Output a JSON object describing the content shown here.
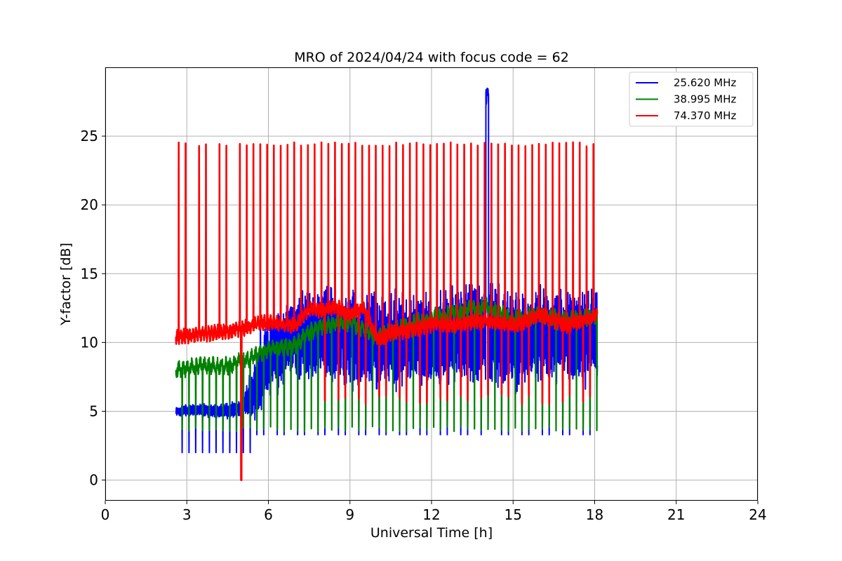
{
  "chart_data": {
    "type": "line",
    "title": "MRO of 2024/04/24 with focus code = 62",
    "xlabel": "Universal Time [h]",
    "ylabel": "Y-factor [dB]",
    "xlim": [
      0,
      24
    ],
    "ylim": [
      -1.5,
      30
    ],
    "xticks": [
      0,
      3,
      6,
      9,
      12,
      15,
      18,
      21,
      24
    ],
    "yticks": [
      0,
      5,
      10,
      15,
      20,
      25
    ],
    "grid": true,
    "legend_position": "top-right",
    "x_range_of_data": [
      2.6,
      18.1
    ],
    "pulse_period_h": 0.25,
    "series": [
      {
        "name": "25.620 MHz",
        "color": "#0000ff",
        "baseline": [
          [
            2.6,
            5.0
          ],
          [
            3.5,
            5.1
          ],
          [
            4.5,
            5.0
          ],
          [
            5.0,
            5.3
          ],
          [
            5.5,
            6.5
          ],
          [
            5.9,
            8.5
          ],
          [
            6.5,
            9.8
          ],
          [
            7.0,
            10.3
          ],
          [
            8.0,
            10.5
          ],
          [
            9.0,
            10.2
          ],
          [
            10.0,
            10.0
          ],
          [
            11.0,
            10.2
          ],
          [
            12.0,
            10.4
          ],
          [
            13.0,
            10.5
          ],
          [
            14.0,
            10.8
          ],
          [
            15.0,
            10.2
          ],
          [
            16.0,
            10.5
          ],
          [
            17.0,
            10.3
          ],
          [
            18.1,
            10.5
          ]
        ],
        "oscillation_amplitude": [
          [
            2.6,
            0.3
          ],
          [
            5.0,
            0.5
          ],
          [
            5.8,
            2.5
          ],
          [
            7.0,
            2.8
          ],
          [
            10.0,
            2.8
          ],
          [
            14.0,
            3.0
          ],
          [
            18.1,
            2.8
          ]
        ],
        "pulse_low": 3.3,
        "pulse_low_early": 2.0,
        "spike": {
          "x": 14.05,
          "y": 28.5
        }
      },
      {
        "name": "38.995 MHz",
        "color": "#008000",
        "baseline": [
          [
            2.6,
            8.0
          ],
          [
            3.5,
            8.3
          ],
          [
            4.5,
            8.3
          ],
          [
            5.0,
            8.6
          ],
          [
            5.5,
            9.0
          ],
          [
            6.0,
            9.5
          ],
          [
            7.0,
            9.8
          ],
          [
            7.5,
            10.8
          ],
          [
            8.0,
            11.2
          ],
          [
            9.0,
            11.5
          ],
          [
            10.0,
            10.4
          ],
          [
            11.0,
            11.2
          ],
          [
            12.0,
            11.8
          ],
          [
            13.0,
            12.3
          ],
          [
            14.0,
            12.6
          ],
          [
            15.0,
            11.7
          ],
          [
            16.0,
            12.0
          ],
          [
            17.0,
            11.6
          ],
          [
            18.1,
            12.0
          ]
        ],
        "pulse_low": 3.5,
        "pulse_peak": 5.0
      },
      {
        "name": "74.370 MHz",
        "color": "#ff0000",
        "baseline": [
          [
            2.6,
            10.4
          ],
          [
            3.5,
            10.6
          ],
          [
            4.5,
            10.8
          ],
          [
            5.0,
            11.0
          ],
          [
            5.5,
            11.3
          ],
          [
            6.0,
            11.5
          ],
          [
            7.0,
            11.2
          ],
          [
            7.5,
            12.5
          ],
          [
            8.0,
            12.3
          ],
          [
            8.5,
            12.6
          ],
          [
            9.0,
            12.0
          ],
          [
            9.5,
            12.5
          ],
          [
            10.0,
            10.2
          ],
          [
            10.5,
            10.7
          ],
          [
            11.0,
            10.8
          ],
          [
            12.0,
            11.3
          ],
          [
            13.0,
            11.3
          ],
          [
            14.0,
            11.6
          ],
          [
            15.0,
            11.2
          ],
          [
            16.0,
            12.0
          ],
          [
            17.0,
            11.2
          ],
          [
            18.1,
            12.0
          ]
        ],
        "pulse_peak": 24.4,
        "pulse_low_late": 5.5,
        "dropout": {
          "x": 5.0,
          "y": 0.0
        }
      }
    ]
  }
}
